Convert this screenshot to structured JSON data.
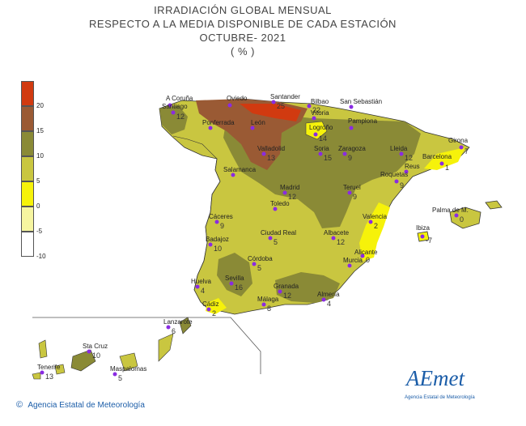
{
  "title": {
    "line1": "IRRADIACIÓN GLOBAL MENSUAL",
    "line2": "RESPECTO A LA MEDIA DISPONIBLE DE CADA ESTACIÓN",
    "line3": "OCTUBRE- 2021",
    "line4": "( % )"
  },
  "legend": [
    {
      "color": "#d13a10",
      "label": "20"
    },
    {
      "color": "#9a5a34",
      "label": "15"
    },
    {
      "color": "#8a8a36",
      "label": "10"
    },
    {
      "color": "#c9c640",
      "label": "5"
    },
    {
      "color": "#f6f20a",
      "label": "0"
    },
    {
      "color": "#f6f5a0",
      "label": "-5"
    },
    {
      "color": "#ffffff",
      "label": "-10"
    }
  ],
  "stations": [
    {
      "name": "A Coruña",
      "value": ""
    },
    {
      "name": "Santiago",
      "value": "12"
    },
    {
      "name": "Oviedo",
      "value": ""
    },
    {
      "name": "Santander",
      "value": "25"
    },
    {
      "name": "Bilbao",
      "value": "22"
    },
    {
      "name": "San Sebastián",
      "value": ""
    },
    {
      "name": "Vitoria",
      "value": ""
    },
    {
      "name": "Pamplona",
      "value": ""
    },
    {
      "name": "Logroño",
      "value": "14"
    },
    {
      "name": "Ponferrada",
      "value": ""
    },
    {
      "name": "León",
      "value": ""
    },
    {
      "name": "Valladolid",
      "value": "13"
    },
    {
      "name": "Soria",
      "value": "15"
    },
    {
      "name": "Zaragoza",
      "value": "9"
    },
    {
      "name": "Lleida",
      "value": "12"
    },
    {
      "name": "Girona",
      "value": "7"
    },
    {
      "name": "Barcelona",
      "value": "1"
    },
    {
      "name": "Reus",
      "value": ""
    },
    {
      "name": "Roquetas",
      "value": "9"
    },
    {
      "name": "Salamanca",
      "value": ""
    },
    {
      "name": "Madrid",
      "value": "12"
    },
    {
      "name": "Teruel",
      "value": "9"
    },
    {
      "name": "Toledo",
      "value": ""
    },
    {
      "name": "Cáceres",
      "value": "9"
    },
    {
      "name": "Valencia",
      "value": "2"
    },
    {
      "name": "Palma de M.",
      "value": "0"
    },
    {
      "name": "Ibiza",
      "value": "-7"
    },
    {
      "name": "Ciudad Real",
      "value": "5"
    },
    {
      "name": "Albacete",
      "value": "12"
    },
    {
      "name": "Badajoz",
      "value": "10"
    },
    {
      "name": "Alicante",
      "value": "0"
    },
    {
      "name": "Córdoba",
      "value": "5"
    },
    {
      "name": "Murcia",
      "value": ""
    },
    {
      "name": "Huelva",
      "value": "4"
    },
    {
      "name": "Sevilla",
      "value": "16"
    },
    {
      "name": "Granada",
      "value": "12"
    },
    {
      "name": "Almería",
      "value": "4"
    },
    {
      "name": "Málaga",
      "value": "8"
    },
    {
      "name": "Cádiz",
      "value": "2"
    },
    {
      "name": "Lanzarote",
      "value": "6"
    },
    {
      "name": "Sta Cruz",
      "value": "10"
    },
    {
      "name": "Tenerife",
      "value": "13"
    },
    {
      "name": "Maspalomas",
      "value": "5"
    }
  ],
  "footer": {
    "copyright": "©",
    "agency": "Agencia Estatal de Meteorología"
  },
  "logo": {
    "text": "AEmet",
    "subtitle": "Agencia Estatal de Meteorología"
  }
}
